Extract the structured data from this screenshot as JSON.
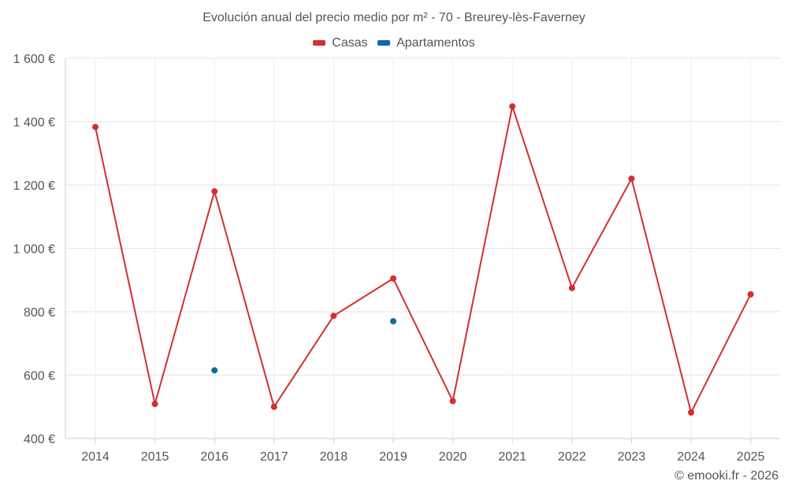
{
  "chart_data": {
    "type": "line",
    "title": "Evolución anual del precio medio por m² - 70 - Breurey-lès-Faverney",
    "categories": [
      "2014",
      "2015",
      "2016",
      "2017",
      "2018",
      "2019",
      "2020",
      "2021",
      "2022",
      "2023",
      "2024",
      "2025"
    ],
    "series": [
      {
        "name": "Casas",
        "color": "#d32f2f",
        "values": [
          1383,
          509,
          1180,
          500,
          787,
          905,
          518,
          1448,
          875,
          1220,
          482,
          855
        ]
      },
      {
        "name": "Apartamentos",
        "color": "#0e6aa2",
        "values": [
          null,
          null,
          615,
          null,
          null,
          770,
          null,
          null,
          null,
          null,
          null,
          null
        ]
      }
    ],
    "ylim": [
      400,
      1600
    ],
    "yticks": [
      400,
      600,
      800,
      1000,
      1200,
      1400,
      1600
    ],
    "ytick_labels": [
      "400 €",
      "600 €",
      "800 €",
      "1 000 €",
      "1 200 €",
      "1 400 €",
      "1 600 €"
    ],
    "xlabel": "",
    "ylabel": "",
    "grid": true,
    "legend_position": "top-center"
  },
  "credit": "© emooki.fr - 2026"
}
